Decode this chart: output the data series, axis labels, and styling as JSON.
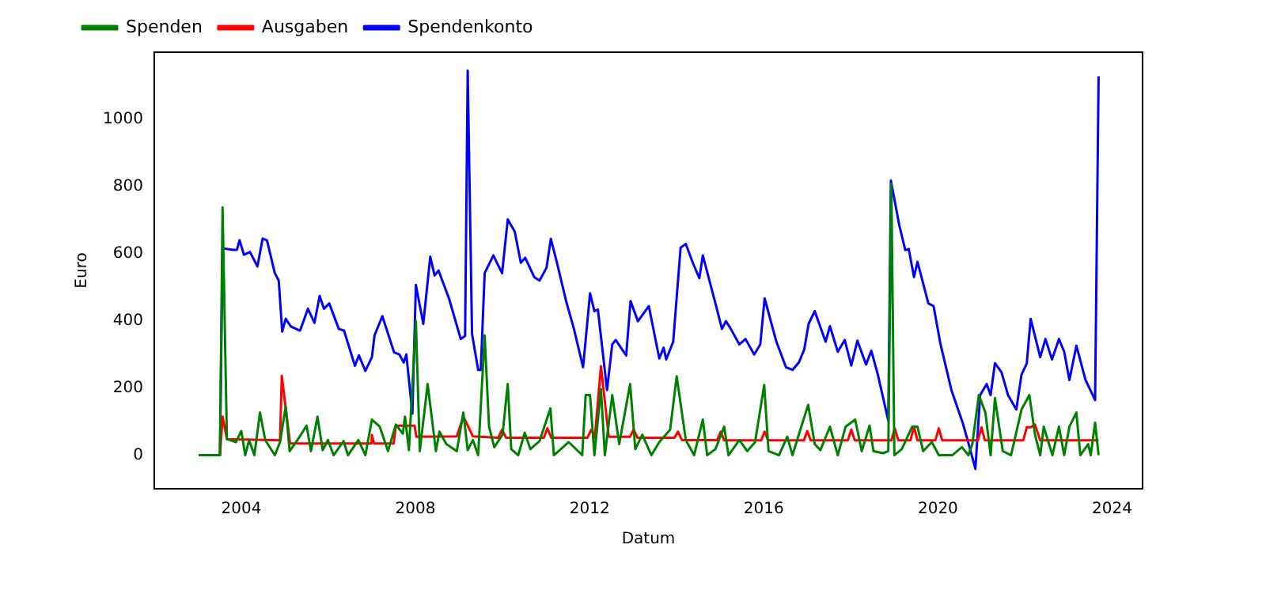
{
  "chart_data": {
    "type": "line",
    "xlabel": "Datum",
    "ylabel": "Euro",
    "xlim": [
      2002,
      2024.7
    ],
    "xticks": [
      2004,
      2008,
      2012,
      2016,
      2020,
      2024
    ],
    "ylim": [
      -100,
      1200
    ],
    "yticks": [
      0,
      200,
      400,
      600,
      800,
      1000
    ],
    "grid": false,
    "legend": "top left",
    "marker": "none",
    "line_style": "solid",
    "series": [
      {
        "name": "Spenden",
        "color": "#008000",
        "x": [
          2003.02,
          2003.51,
          2003.57,
          2003.67,
          2003.88,
          2004.0,
          2004.09,
          2004.18,
          2004.3,
          2004.43,
          2004.55,
          2004.77,
          2004.89,
          2005.02,
          2005.11,
          2005.29,
          2005.5,
          2005.6,
          2005.75,
          2005.87,
          2005.99,
          2006.12,
          2006.35,
          2006.45,
          2006.69,
          2006.85,
          2007.0,
          2007.18,
          2007.37,
          2007.55,
          2007.71,
          2007.76,
          2007.85,
          2008.01,
          2008.1,
          2008.28,
          2008.47,
          2008.55,
          2008.71,
          2008.95,
          2009.1,
          2009.2,
          2009.32,
          2009.44,
          2009.59,
          2009.69,
          2009.81,
          2010.0,
          2010.12,
          2010.2,
          2010.36,
          2010.51,
          2010.64,
          2010.85,
          2011.1,
          2011.18,
          2011.34,
          2011.52,
          2011.83,
          2011.91,
          2012.01,
          2012.11,
          2012.26,
          2012.35,
          2012.52,
          2012.68,
          2012.93,
          2013.05,
          2013.21,
          2013.42,
          2013.6,
          2013.85,
          2014.0,
          2014.21,
          2014.4,
          2014.6,
          2014.7,
          2014.89,
          2015.09,
          2015.19,
          2015.44,
          2015.62,
          2015.8,
          2016.01,
          2016.11,
          2016.35,
          2016.54,
          2016.66,
          2016.84,
          2017.02,
          2017.17,
          2017.3,
          2017.52,
          2017.7,
          2017.88,
          2018.1,
          2018.25,
          2018.43,
          2018.52,
          2018.74,
          2018.86,
          2018.93,
          2019.0,
          2019.17,
          2019.41,
          2019.53,
          2019.66,
          2019.86,
          2020.02,
          2020.33,
          2020.55,
          2020.7,
          2020.79,
          2020.94,
          2021.09,
          2021.21,
          2021.31,
          2021.49,
          2021.68,
          2021.92,
          2022.1,
          2022.23,
          2022.35,
          2022.43,
          2022.63,
          2022.78,
          2022.9,
          2023.02,
          2023.18,
          2023.27,
          2023.45,
          2023.51,
          2023.61,
          2023.69
        ],
        "values": [
          0,
          0,
          738,
          48,
          39,
          72,
          0,
          45,
          0,
          127,
          45,
          0,
          39,
          145,
          12,
          45,
          88,
          12,
          115,
          15,
          45,
          0,
          42,
          0,
          45,
          0,
          106,
          85,
          12,
          91,
          64,
          115,
          15,
          400,
          12,
          212,
          12,
          70,
          33,
          12,
          127,
          15,
          45,
          0,
          357,
          85,
          24,
          61,
          212,
          18,
          0,
          67,
          18,
          42,
          139,
          0,
          18,
          39,
          0,
          179,
          179,
          0,
          197,
          0,
          179,
          33,
          212,
          18,
          61,
          0,
          39,
          76,
          235,
          45,
          0,
          106,
          0,
          18,
          85,
          0,
          45,
          12,
          39,
          209,
          12,
          0,
          55,
          0,
          76,
          150,
          33,
          15,
          85,
          0,
          85,
          106,
          12,
          88,
          12,
          6,
          12,
          808,
          0,
          18,
          85,
          85,
          12,
          39,
          0,
          0,
          24,
          0,
          33,
          179,
          127,
          0,
          170,
          12,
          0,
          136,
          179,
          61,
          0,
          85,
          0,
          85,
          0,
          85,
          127,
          0,
          33,
          0,
          97,
          0
        ]
      },
      {
        "name": "Ausgaben",
        "color": "#ff0000",
        "x": [
          2003.02,
          2003.51,
          2003.57,
          2003.67,
          2004.89,
          2004.93,
          2005.12,
          2006.99,
          2007.0,
          2007.05,
          2007.5,
          2007.55,
          2007.98,
          2008.02,
          2008.95,
          2009.1,
          2009.32,
          2009.9,
          2009.99,
          2010.08,
          2010.95,
          2011.03,
          2011.12,
          2011.95,
          2012.04,
          2012.12,
          2012.26,
          2012.44,
          2012.93,
          2013.01,
          2013.1,
          2013.95,
          2014.03,
          2014.12,
          2014.93,
          2015.01,
          2015.09,
          2015.94,
          2016.02,
          2016.1,
          2016.92,
          2017.0,
          2017.08,
          2017.93,
          2018.01,
          2018.09,
          2018.93,
          2019.01,
          2019.09,
          2019.37,
          2019.45,
          2019.53,
          2019.94,
          2020.02,
          2020.1,
          2020.92,
          2021.0,
          2021.08,
          2021.96,
          2022.04,
          2022.13,
          2022.23,
          2022.35,
          2023.69
        ],
        "values": [
          0,
          0,
          115,
          48,
          44,
          236,
          35,
          35,
          60,
          35,
          35,
          88,
          88,
          55,
          56,
          115,
          56,
          52,
          76,
          52,
          52,
          80,
          52,
          52,
          76,
          52,
          265,
          55,
          55,
          76,
          52,
          52,
          70,
          45,
          45,
          70,
          44,
          44,
          70,
          44,
          44,
          72,
          44,
          44,
          76,
          44,
          44,
          80,
          44,
          44,
          85,
          44,
          44,
          80,
          44,
          44,
          83,
          44,
          44,
          83,
          83,
          91,
          44,
          44
        ]
      },
      {
        "name": "Spendenkonto",
        "color": "#0000ff",
        "x": [
          2003.02,
          2003.51,
          2003.57,
          2003.82,
          2003.9,
          2003.96,
          2004.06,
          2004.2,
          2004.37,
          2004.49,
          2004.59,
          2004.77,
          2004.86,
          2004.94,
          2005.02,
          2005.14,
          2005.35,
          2005.53,
          2005.68,
          2005.8,
          2005.9,
          2006.02,
          2006.24,
          2006.36,
          2006.61,
          2006.7,
          2006.85,
          2007.0,
          2007.06,
          2007.24,
          2007.51,
          2007.63,
          2007.73,
          2007.79,
          2007.93,
          2008.01,
          2008.18,
          2008.34,
          2008.44,
          2008.53,
          2008.77,
          2009.04,
          2009.14,
          2009.2,
          2009.3,
          2009.44,
          2009.5,
          2009.59,
          2009.79,
          2009.87,
          2009.99,
          2010.12,
          2010.28,
          2010.42,
          2010.52,
          2010.73,
          2010.85,
          2011.01,
          2011.11,
          2011.25,
          2011.46,
          2011.64,
          2011.85,
          2012.01,
          2012.11,
          2012.19,
          2012.4,
          2012.52,
          2012.6,
          2012.84,
          2012.94,
          2013.11,
          2013.36,
          2013.6,
          2013.7,
          2013.76,
          2013.92,
          2014.09,
          2014.21,
          2014.37,
          2014.52,
          2014.6,
          2014.89,
          2015.04,
          2015.13,
          2015.23,
          2015.44,
          2015.58,
          2015.78,
          2015.92,
          2016.02,
          2016.29,
          2016.51,
          2016.66,
          2016.81,
          2016.93,
          2017.03,
          2017.17,
          2017.42,
          2017.52,
          2017.7,
          2017.86,
          2018.01,
          2018.15,
          2018.35,
          2018.47,
          2018.62,
          2018.86,
          2018.92,
          2019.11,
          2019.25,
          2019.33,
          2019.45,
          2019.53,
          2019.78,
          2019.9,
          2020.06,
          2020.31,
          2020.45,
          2020.57,
          2020.72,
          2020.86,
          2020.97,
          2021.12,
          2021.21,
          2021.31,
          2021.46,
          2021.61,
          2021.8,
          2021.92,
          2022.04,
          2022.13,
          2022.35,
          2022.47,
          2022.62,
          2022.78,
          2022.9,
          2023.02,
          2023.18,
          2023.39,
          2023.61,
          2023.69
        ],
        "values": [
          0,
          0,
          616,
          611,
          612,
          640,
          597,
          605,
          562,
          645,
          640,
          542,
          520,
          368,
          406,
          383,
          371,
          436,
          394,
          474,
          436,
          452,
          376,
          371,
          266,
          297,
          251,
          292,
          357,
          414,
          306,
          300,
          276,
          300,
          124,
          507,
          391,
          591,
          535,
          550,
          467,
          346,
          355,
          1145,
          361,
          254,
          254,
          542,
          595,
          573,
          542,
          702,
          666,
          573,
          588,
          530,
          520,
          558,
          644,
          573,
          459,
          376,
          262,
          482,
          429,
          434,
          194,
          330,
          343,
          297,
          459,
          399,
          444,
          288,
          320,
          285,
          338,
          618,
          629,
          573,
          527,
          595,
          452,
          376,
          399,
          379,
          330,
          346,
          300,
          330,
          467,
          338,
          262,
          254,
          277,
          315,
          391,
          429,
          338,
          384,
          308,
          343,
          267,
          341,
          270,
          311,
          240,
          103,
          818,
          686,
          611,
          614,
          530,
          576,
          452,
          444,
          330,
          194,
          141,
          96,
          27,
          -41,
          179,
          212,
          179,
          274,
          247,
          179,
          136,
          240,
          273,
          406,
          292,
          346,
          285,
          346,
          308,
          224,
          326,
          224,
          164,
          1128
        ]
      }
    ]
  }
}
